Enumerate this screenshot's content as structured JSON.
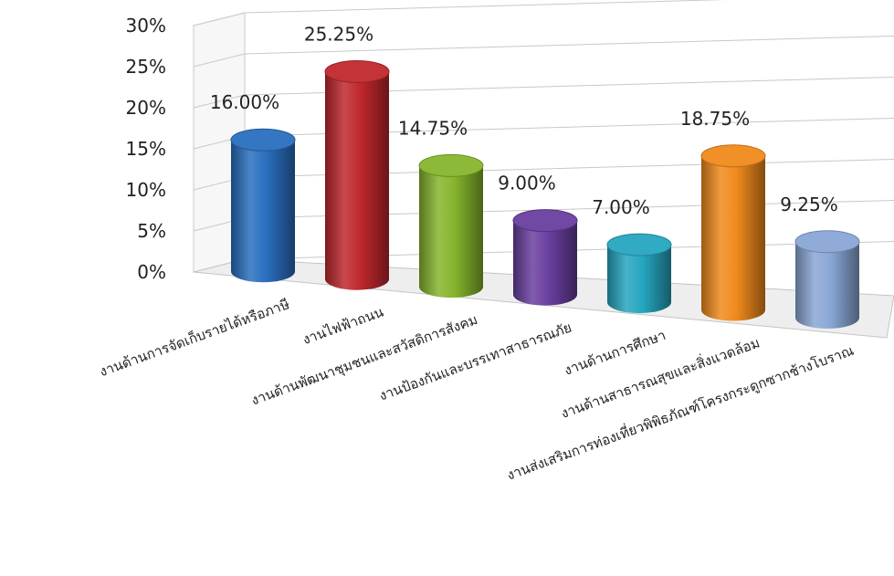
{
  "chart_data": {
    "type": "bar",
    "style": "3d-cylinder",
    "categories": [
      "งานด้านการจัดเก็บรายได้หรือภาษี",
      "งานไฟฟ้าถนน",
      "งานด้านพัฒนาชุมชนและสวัสดิการสังคม",
      "งานป้องกันและบรรเทาสาธารณภัย",
      "งานด้านการศึกษา",
      "งานด้านสาธารณสุขและสิ่งแวดล้อม",
      "งานส่งเสริมการท่องเที่ยวพิพิธภัณฑ์โครงกระดูกซากช้างโบราณ"
    ],
    "values": [
      16.0,
      25.25,
      14.75,
      9.0,
      7.0,
      18.75,
      9.25
    ],
    "data_labels": [
      "16.00%",
      "25.25%",
      "14.75%",
      "9.00%",
      "7.00%",
      "18.75%",
      "9.25%"
    ],
    "y_ticks": [
      "0%",
      "5%",
      "10%",
      "15%",
      "20%",
      "25%",
      "30%"
    ],
    "ylim": [
      0,
      30
    ],
    "grid": true,
    "legend": "none",
    "title": "",
    "xlabel": "",
    "ylabel": "",
    "colors": [
      "#2a6fbf",
      "#c0282d",
      "#86b52c",
      "#6a3fa0",
      "#26a6c0",
      "#f08a1c",
      "#8aa7d6"
    ]
  }
}
